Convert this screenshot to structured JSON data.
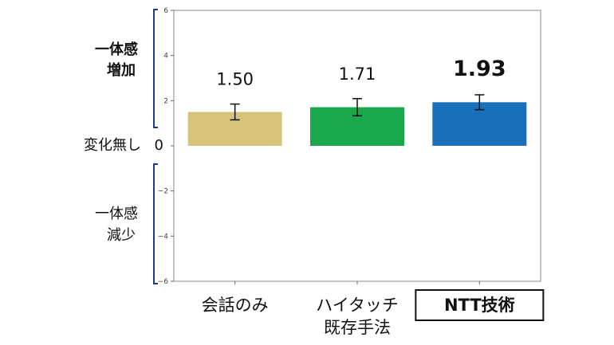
{
  "chart_data": {
    "type": "bar",
    "categories": [
      {
        "lines": [
          "会話のみ"
        ],
        "emphasis": false
      },
      {
        "lines": [
          "ハイタッチ",
          "既存手法"
        ],
        "emphasis": false
      },
      {
        "lines": [
          "NTT技術"
        ],
        "emphasis": true
      }
    ],
    "values": [
      1.5,
      1.71,
      1.93
    ],
    "errors": [
      0.35,
      0.38,
      0.33
    ],
    "value_labels": [
      "1.50",
      "1.71",
      "1.93"
    ],
    "colors": [
      "#d6c47a",
      "#1aa64a",
      "#1a6fba"
    ],
    "ylim": [
      -6,
      6
    ],
    "yticks": [
      6,
      4,
      2,
      -2,
      -4,
      -6
    ],
    "zero_label": "0",
    "grid": false,
    "annotations": {
      "increase": [
        "一体感",
        "増加"
      ],
      "no_change": "変化無し",
      "decrease": [
        "一体感",
        "減少"
      ]
    },
    "bracket_color": "#1f3a93"
  }
}
